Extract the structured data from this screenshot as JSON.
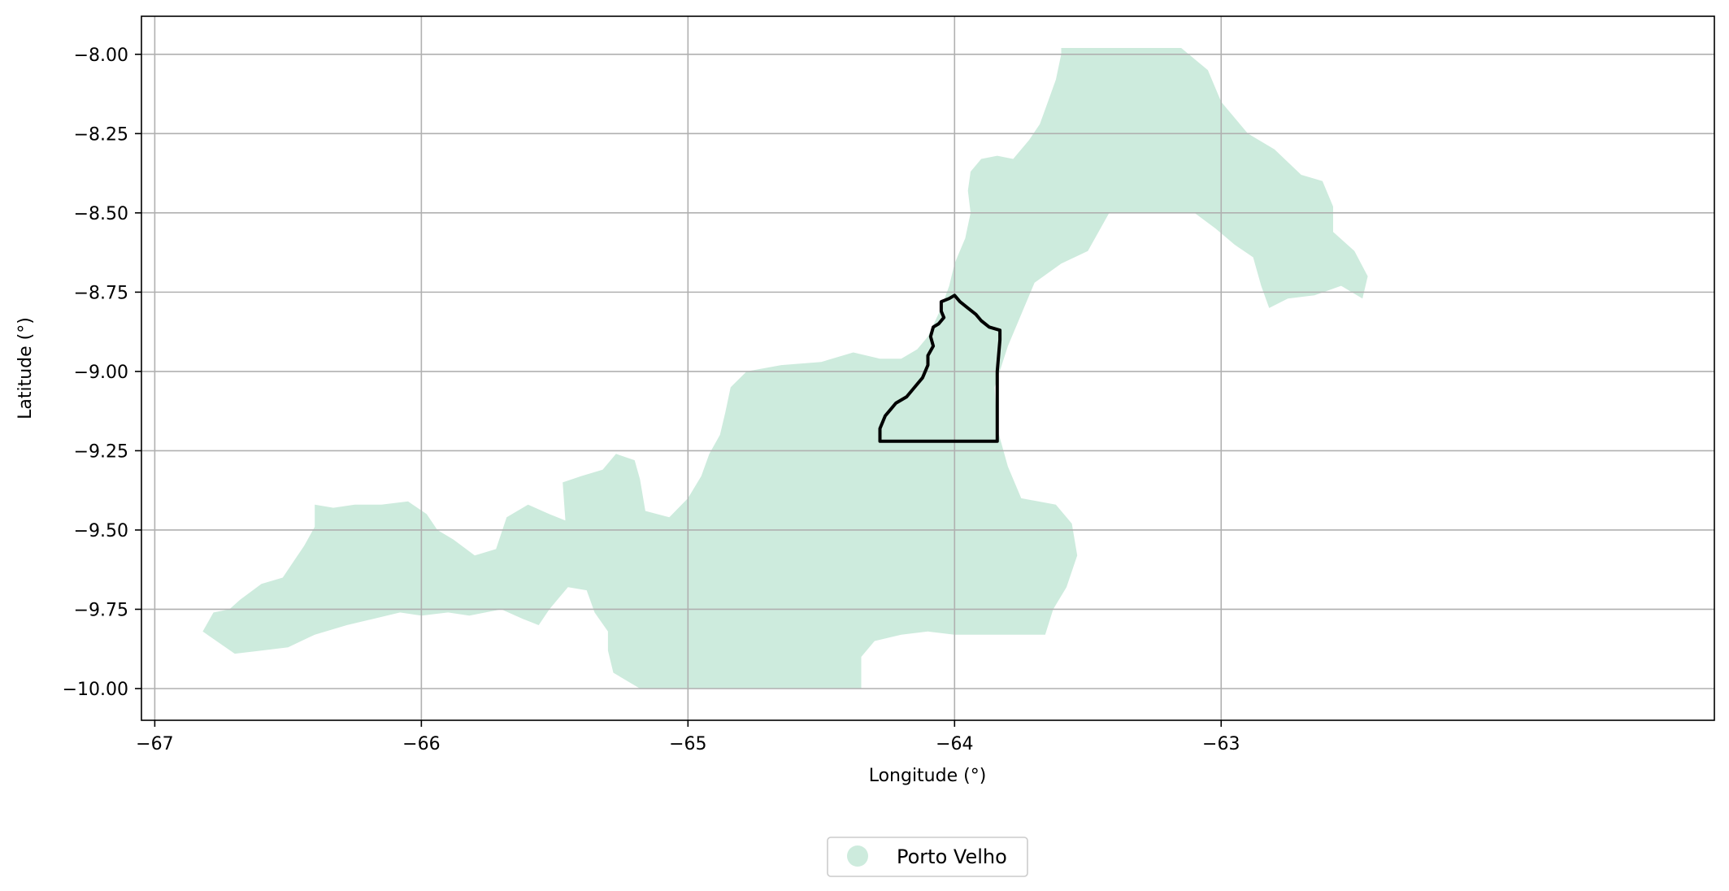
{
  "chart_data": {
    "type": "map",
    "xlabel": "Longitude (°)",
    "ylabel": "Latitude (°)",
    "xlim": [
      -67.05,
      -61.15
    ],
    "ylim": [
      -10.1,
      -7.88
    ],
    "xticks": [
      -67,
      -66,
      -65,
      -64,
      -63
    ],
    "yticks": [
      -8.0,
      -8.25,
      -8.5,
      -8.75,
      -9.0,
      -9.25,
      -9.5,
      -9.75,
      -10.0
    ],
    "xtick_labels": [
      "−67",
      "−66",
      "−65",
      "−64",
      "−63"
    ],
    "ytick_labels": [
      "−8.00",
      "−8.25",
      "−8.50",
      "−8.75",
      "−9.00",
      "−9.25",
      "−9.50",
      "−9.75",
      "−10.00"
    ],
    "grid": true,
    "legend_placement": "bottom-center",
    "legend": [
      {
        "label": "Porto Velho",
        "color": "#cdebdd"
      }
    ],
    "region": {
      "name": "Porto Velho",
      "fill_color": "#cdebdd",
      "polygon": [
        [
          -66.82,
          -9.82
        ],
        [
          -66.78,
          -9.76
        ],
        [
          -66.72,
          -9.75
        ],
        [
          -66.68,
          -9.72
        ],
        [
          -66.6,
          -9.67
        ],
        [
          -66.52,
          -9.65
        ],
        [
          -66.48,
          -9.6
        ],
        [
          -66.44,
          -9.55
        ],
        [
          -66.4,
          -9.49
        ],
        [
          -66.4,
          -9.42
        ],
        [
          -66.33,
          -9.43
        ],
        [
          -66.25,
          -9.42
        ],
        [
          -66.15,
          -9.42
        ],
        [
          -66.05,
          -9.41
        ],
        [
          -65.98,
          -9.45
        ],
        [
          -65.94,
          -9.5
        ],
        [
          -65.88,
          -9.53
        ],
        [
          -65.8,
          -9.58
        ],
        [
          -65.72,
          -9.56
        ],
        [
          -65.68,
          -9.46
        ],
        [
          -65.6,
          -9.42
        ],
        [
          -65.52,
          -9.45
        ],
        [
          -65.46,
          -9.47
        ],
        [
          -65.47,
          -9.35
        ],
        [
          -65.4,
          -9.33
        ],
        [
          -65.32,
          -9.31
        ],
        [
          -65.27,
          -9.26
        ],
        [
          -65.2,
          -9.28
        ],
        [
          -65.18,
          -9.34
        ],
        [
          -65.16,
          -9.44
        ],
        [
          -65.07,
          -9.46
        ],
        [
          -65.0,
          -9.4
        ],
        [
          -64.95,
          -9.33
        ],
        [
          -64.92,
          -9.26
        ],
        [
          -64.88,
          -9.2
        ],
        [
          -64.86,
          -9.13
        ],
        [
          -64.84,
          -9.05
        ],
        [
          -64.78,
          -9.0
        ],
        [
          -64.65,
          -8.98
        ],
        [
          -64.5,
          -8.97
        ],
        [
          -64.38,
          -8.94
        ],
        [
          -64.28,
          -8.96
        ],
        [
          -64.2,
          -8.96
        ],
        [
          -64.14,
          -8.93
        ],
        [
          -64.1,
          -8.89
        ],
        [
          -64.05,
          -8.8
        ],
        [
          -64.02,
          -8.73
        ],
        [
          -64.0,
          -8.66
        ],
        [
          -63.96,
          -8.58
        ],
        [
          -63.94,
          -8.5
        ],
        [
          -63.95,
          -8.43
        ],
        [
          -63.94,
          -8.37
        ],
        [
          -63.9,
          -8.33
        ],
        [
          -63.84,
          -8.32
        ],
        [
          -63.78,
          -8.33
        ],
        [
          -63.72,
          -8.27
        ],
        [
          -63.68,
          -8.22
        ],
        [
          -63.65,
          -8.15
        ],
        [
          -63.62,
          -8.08
        ],
        [
          -63.6,
          -8.0
        ],
        [
          -63.6,
          -7.98
        ],
        [
          -63.5,
          -7.98
        ],
        [
          -63.2,
          -7.98
        ],
        [
          -63.15,
          -7.98
        ],
        [
          -63.05,
          -8.05
        ],
        [
          -63.0,
          -8.15
        ],
        [
          -62.9,
          -8.25
        ],
        [
          -62.8,
          -8.3
        ],
        [
          -62.7,
          -8.38
        ],
        [
          -62.62,
          -8.4
        ],
        [
          -62.58,
          -8.48
        ],
        [
          -62.58,
          -8.56
        ],
        [
          -62.5,
          -8.62
        ],
        [
          -62.45,
          -8.7
        ],
        [
          -62.47,
          -8.77
        ],
        [
          -62.55,
          -8.73
        ],
        [
          -62.65,
          -8.76
        ],
        [
          -62.75,
          -8.77
        ],
        [
          -62.82,
          -8.8
        ],
        [
          -62.85,
          -8.73
        ],
        [
          -62.88,
          -8.64
        ],
        [
          -62.95,
          -8.6
        ],
        [
          -63.02,
          -8.55
        ],
        [
          -63.1,
          -8.5
        ],
        [
          -63.42,
          -8.5
        ],
        [
          -63.5,
          -8.62
        ],
        [
          -63.6,
          -8.66
        ],
        [
          -63.7,
          -8.72
        ],
        [
          -63.75,
          -8.82
        ],
        [
          -63.8,
          -8.92
        ],
        [
          -63.85,
          -9.05
        ],
        [
          -63.84,
          -9.18
        ],
        [
          -63.8,
          -9.3
        ],
        [
          -63.75,
          -9.4
        ],
        [
          -63.62,
          -9.42
        ],
        [
          -63.56,
          -9.48
        ],
        [
          -63.54,
          -9.58
        ],
        [
          -63.58,
          -9.68
        ],
        [
          -63.63,
          -9.75
        ],
        [
          -63.66,
          -9.83
        ],
        [
          -64.0,
          -9.83
        ],
        [
          -64.1,
          -9.82
        ],
        [
          -64.2,
          -9.83
        ],
        [
          -64.3,
          -9.85
        ],
        [
          -64.35,
          -9.9
        ],
        [
          -64.35,
          -10.0
        ],
        [
          -64.8,
          -10.0
        ],
        [
          -65.18,
          -10.0
        ],
        [
          -65.28,
          -9.95
        ],
        [
          -65.3,
          -9.88
        ],
        [
          -65.3,
          -9.82
        ],
        [
          -65.35,
          -9.76
        ],
        [
          -65.38,
          -9.69
        ],
        [
          -65.45,
          -9.68
        ],
        [
          -65.52,
          -9.75
        ],
        [
          -65.56,
          -9.8
        ],
        [
          -65.62,
          -9.78
        ],
        [
          -65.7,
          -9.75
        ],
        [
          -65.82,
          -9.77
        ],
        [
          -65.9,
          -9.76
        ],
        [
          -66.0,
          -9.77
        ],
        [
          -66.08,
          -9.76
        ],
        [
          -66.18,
          -9.78
        ],
        [
          -66.28,
          -9.8
        ],
        [
          -66.4,
          -9.83
        ],
        [
          -66.5,
          -9.87
        ],
        [
          -66.6,
          -9.88
        ],
        [
          -66.7,
          -9.89
        ]
      ],
      "boundary": [
        [
          -64.28,
          -9.22
        ],
        [
          -64.28,
          -9.18
        ],
        [
          -64.26,
          -9.14
        ],
        [
          -64.24,
          -9.12
        ],
        [
          -64.22,
          -9.1
        ],
        [
          -64.18,
          -9.08
        ],
        [
          -64.15,
          -9.05
        ],
        [
          -64.12,
          -9.02
        ],
        [
          -64.1,
          -8.98
        ],
        [
          -64.1,
          -8.95
        ],
        [
          -64.08,
          -8.92
        ],
        [
          -64.09,
          -8.89
        ],
        [
          -64.08,
          -8.86
        ],
        [
          -64.06,
          -8.85
        ],
        [
          -64.04,
          -8.83
        ],
        [
          -64.05,
          -8.81
        ],
        [
          -64.05,
          -8.78
        ],
        [
          -64.02,
          -8.77
        ],
        [
          -64.0,
          -8.76
        ],
        [
          -63.98,
          -8.78
        ],
        [
          -63.95,
          -8.8
        ],
        [
          -63.92,
          -8.82
        ],
        [
          -63.9,
          -8.84
        ],
        [
          -63.87,
          -8.86
        ],
        [
          -63.83,
          -8.87
        ],
        [
          -63.83,
          -8.9
        ],
        [
          -63.84,
          -9.0
        ],
        [
          -63.84,
          -9.1
        ],
        [
          -63.84,
          -9.22
        ],
        [
          -64.0,
          -9.22
        ]
      ]
    }
  }
}
